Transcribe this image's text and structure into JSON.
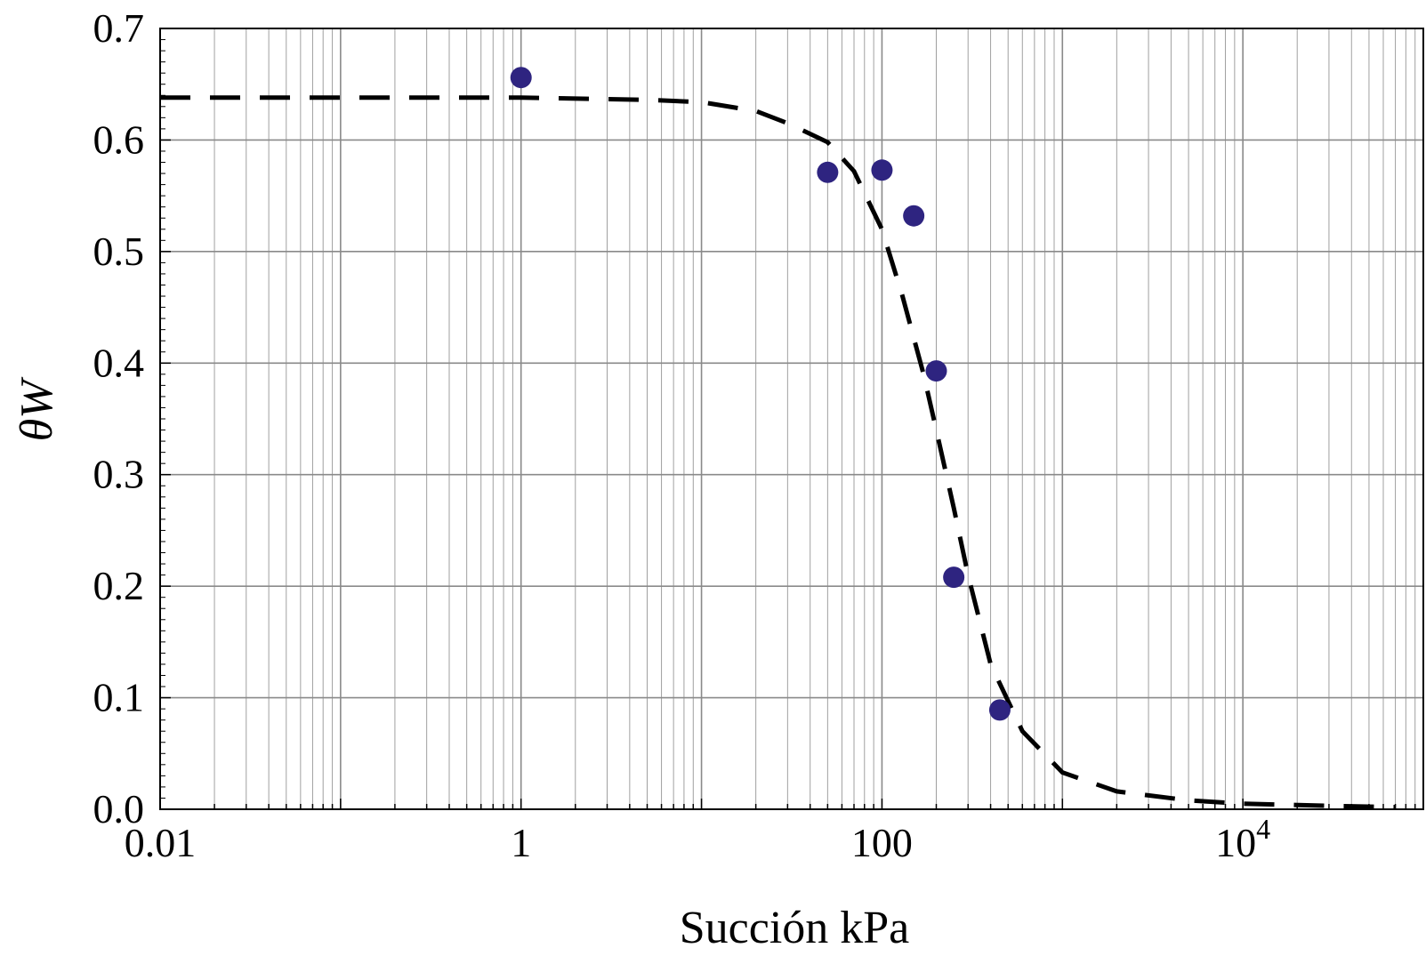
{
  "chart_data": {
    "type": "scatter",
    "xlabel": "Succión kPa",
    "ylabel": "θW",
    "x_scale": "log",
    "xlim": [
      0.01,
      100000
    ],
    "ylim": [
      0,
      0.7
    ],
    "grid": true,
    "x_ticks": [
      {
        "value": 0.01,
        "label": "0.01"
      },
      {
        "value": 1,
        "label": "1"
      },
      {
        "value": 100,
        "label": "100"
      },
      {
        "value": 10000,
        "label": "10",
        "sup": "4"
      }
    ],
    "y_ticks": [
      {
        "value": 0.0,
        "label": "0.0"
      },
      {
        "value": 0.1,
        "label": "0.1"
      },
      {
        "value": 0.2,
        "label": "0.2"
      },
      {
        "value": 0.3,
        "label": "0.3"
      },
      {
        "value": 0.4,
        "label": "0.4"
      },
      {
        "value": 0.5,
        "label": "0.5"
      },
      {
        "value": 0.6,
        "label": "0.6"
      },
      {
        "value": 0.7,
        "label": "0.7"
      }
    ],
    "series": [
      {
        "kind": "points",
        "color": "#2e2480",
        "points": [
          {
            "x": 1.0,
            "y": 0.656
          },
          {
            "x": 50,
            "y": 0.571
          },
          {
            "x": 100,
            "y": 0.573
          },
          {
            "x": 150,
            "y": 0.532
          },
          {
            "x": 200,
            "y": 0.393
          },
          {
            "x": 250,
            "y": 0.208
          },
          {
            "x": 450,
            "y": 0.089
          }
        ]
      },
      {
        "kind": "dashed-line",
        "color": "#000000",
        "points": [
          {
            "x": 0.01,
            "y": 0.638
          },
          {
            "x": 0.1,
            "y": 0.638
          },
          {
            "x": 1,
            "y": 0.638
          },
          {
            "x": 5,
            "y": 0.636
          },
          {
            "x": 10,
            "y": 0.634
          },
          {
            "x": 20,
            "y": 0.626
          },
          {
            "x": 30,
            "y": 0.615
          },
          {
            "x": 50,
            "y": 0.598
          },
          {
            "x": 70,
            "y": 0.572
          },
          {
            "x": 100,
            "y": 0.52
          },
          {
            "x": 130,
            "y": 0.46
          },
          {
            "x": 170,
            "y": 0.39
          },
          {
            "x": 200,
            "y": 0.34
          },
          {
            "x": 250,
            "y": 0.27
          },
          {
            "x": 300,
            "y": 0.21
          },
          {
            "x": 400,
            "y": 0.13
          },
          {
            "x": 600,
            "y": 0.07
          },
          {
            "x": 1000,
            "y": 0.033
          },
          {
            "x": 2000,
            "y": 0.016
          },
          {
            "x": 5000,
            "y": 0.008
          },
          {
            "x": 10000,
            "y": 0.005
          },
          {
            "x": 30000,
            "y": 0.003
          },
          {
            "x": 70000,
            "y": 0.002
          }
        ]
      }
    ]
  }
}
